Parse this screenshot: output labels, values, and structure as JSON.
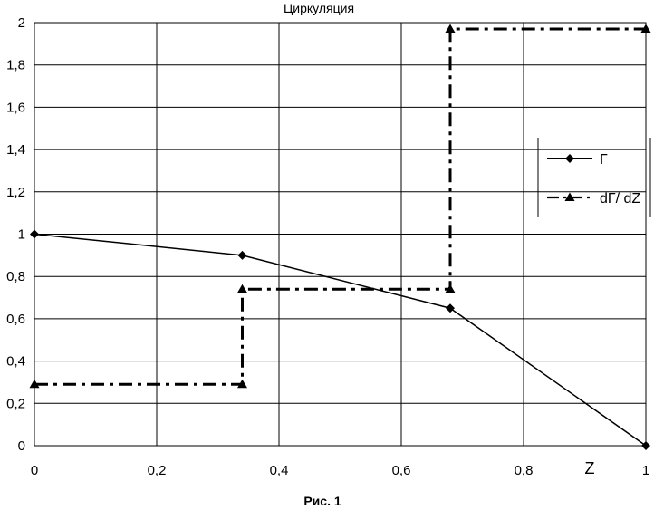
{
  "chart_data": {
    "type": "line",
    "title": "Циркуляция",
    "xlabel": "Z",
    "ylabel": "",
    "caption": "Рис. 1",
    "xlim": [
      0,
      1
    ],
    "ylim": [
      0,
      2
    ],
    "x_ticks": [
      0,
      0.2,
      0.4,
      0.6,
      0.8,
      1
    ],
    "x_tick_labels": [
      "0",
      "0,2",
      "0,4",
      "0,6",
      "0,8",
      "1"
    ],
    "y_ticks": [
      0,
      0.2,
      0.4,
      0.6,
      0.8,
      1,
      1.2,
      1.4,
      1.6,
      1.8,
      2
    ],
    "y_tick_labels": [
      "0",
      "0,2",
      "0,4",
      "0,6",
      "0,8",
      "1",
      "1,2",
      "1,4",
      "1,6",
      "1,8",
      "2"
    ],
    "grid": true,
    "legend_position": "right",
    "series": [
      {
        "name": "Г",
        "line_style": "solid",
        "marker": "diamond",
        "color": "#000000",
        "points": [
          [
            0,
            1.0
          ],
          [
            0.34,
            0.9
          ],
          [
            0.68,
            0.65
          ],
          [
            1.0,
            0.0
          ]
        ]
      },
      {
        "name": "dГ/ dZ",
        "line_style": "dash-dot",
        "marker": "triangle",
        "color": "#000000",
        "points": [
          [
            0,
            0.29
          ],
          [
            0.34,
            0.29
          ],
          [
            0.34,
            0.74
          ],
          [
            0.68,
            0.74
          ],
          [
            0.68,
            1.97
          ],
          [
            1.0,
            1.97
          ]
        ]
      }
    ]
  }
}
